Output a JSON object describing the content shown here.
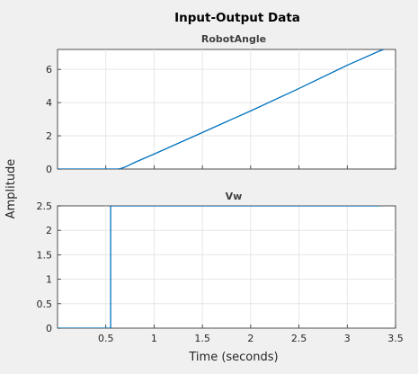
{
  "figure": {
    "title": "Input-Output Data",
    "ylabel": "Amplitude",
    "xlabel": "Time (seconds)"
  },
  "colors": {
    "background": "#f0f0f0",
    "axes_bg": "#ffffff",
    "line": "#0072bd",
    "grid": "#e6e6e6",
    "axis_text": "#262626"
  },
  "chart_data": [
    {
      "type": "line",
      "title": "RobotAngle",
      "xlabel": "",
      "ylabel": "",
      "xlim": [
        0,
        3.5
      ],
      "ylim": [
        0,
        7.2
      ],
      "x_ticks": [
        0.5,
        1,
        1.5,
        2,
        2.5,
        3,
        3.5
      ],
      "y_ticks": [
        0,
        2,
        4,
        6
      ],
      "y_tick_labels": [
        "0",
        "2",
        "4",
        "6"
      ],
      "grid": true,
      "series": [
        {
          "x": [
            0,
            0.3,
            0.62,
            0.65,
            0.7,
            0.8,
            1.0,
            1.5,
            2.0,
            2.5,
            3.0,
            3.33,
            3.5
          ],
          "y": [
            0,
            0,
            0,
            0.02,
            0.12,
            0.4,
            0.9,
            2.2,
            3.5,
            4.85,
            6.25,
            7.1,
            7.45
          ]
        }
      ]
    },
    {
      "type": "line",
      "title": "Vw",
      "xlabel": "Time (seconds)",
      "ylabel": "",
      "xlim": [
        0,
        3.5
      ],
      "ylim": [
        0,
        2.5
      ],
      "x_ticks": [
        0.5,
        1,
        1.5,
        2,
        2.5,
        3,
        3.5
      ],
      "x_tick_labels": [
        "0.5",
        "1",
        "1.5",
        "2",
        "2.5",
        "3",
        "3.5"
      ],
      "y_ticks": [
        0,
        0.5,
        1,
        1.5,
        2,
        2.5
      ],
      "y_tick_labels": [
        "0",
        "0.5",
        "1",
        "1.5",
        "2",
        "2.5"
      ],
      "grid": true,
      "series": [
        {
          "x": [
            0,
            0.55,
            0.55,
            3.35
          ],
          "y": [
            0,
            0,
            2.5,
            2.5
          ]
        }
      ]
    }
  ]
}
